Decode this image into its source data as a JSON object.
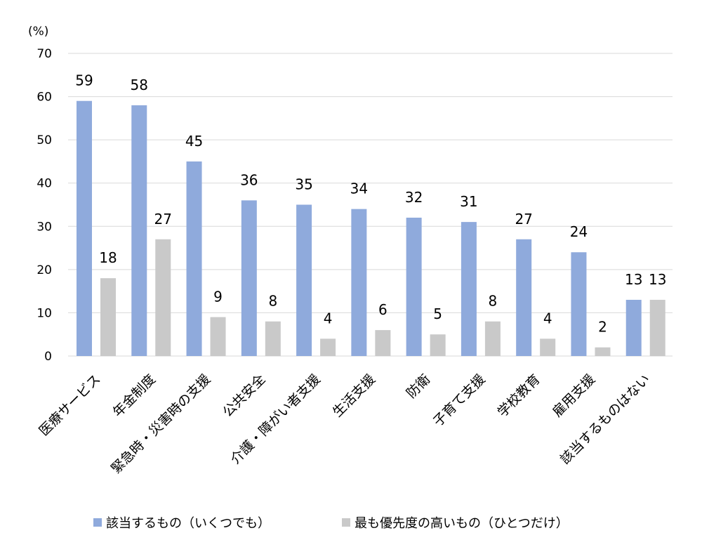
{
  "chart_data": {
    "type": "bar",
    "yunit": "(%)",
    "ylim": [
      0,
      70
    ],
    "yticks": [
      0,
      10,
      20,
      30,
      40,
      50,
      60,
      70
    ],
    "grid": true,
    "legend_position": "bottom",
    "categories": [
      "医療サービス",
      "年金制度",
      "緊急時・災害時の支援",
      "公共安全",
      "介護・障がい者支援",
      "生活支援",
      "防衛",
      "子育て支援",
      "学校教育",
      "雇用支援",
      "該当するものはない"
    ],
    "series": [
      {
        "name": "該当するもの（いくつでも）",
        "color": "#8faadc",
        "values": [
          59,
          58,
          45,
          36,
          35,
          34,
          32,
          31,
          27,
          24,
          13
        ]
      },
      {
        "name": "最も優先度の高いもの（ひとつだけ）",
        "color": "#c9c9c9",
        "values": [
          18,
          27,
          9,
          8,
          4,
          6,
          5,
          8,
          4,
          2,
          13
        ]
      }
    ]
  }
}
